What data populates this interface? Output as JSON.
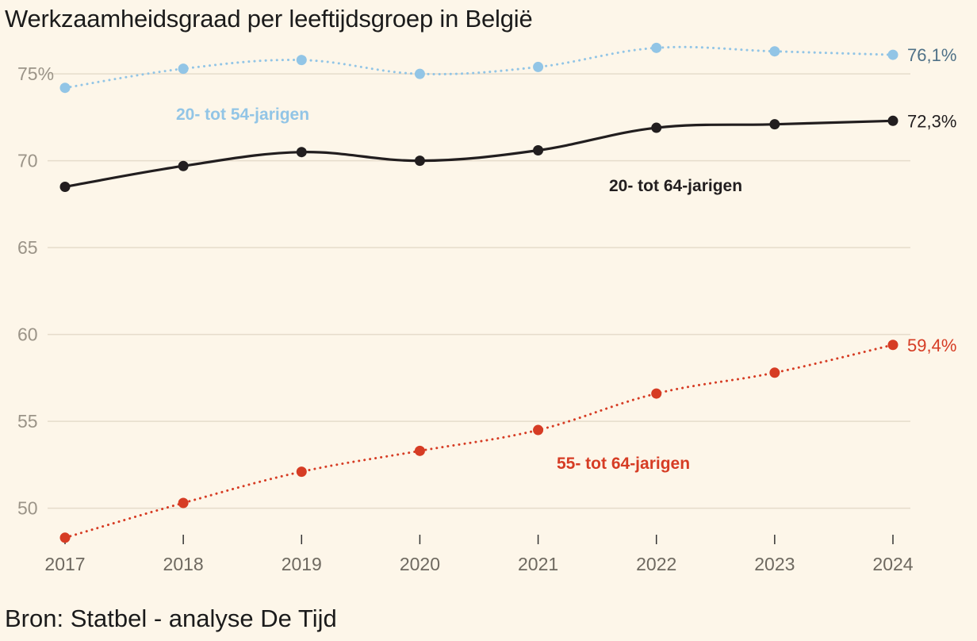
{
  "header": {
    "title": "Werkzaamheidsgraad per leeftijdsgroep in België"
  },
  "footer": {
    "source": "Bron: Statbel - analyse De Tijd"
  },
  "chart_data": {
    "type": "line",
    "x": [
      2017,
      2018,
      2019,
      2020,
      2021,
      2022,
      2023,
      2024
    ],
    "x_tick_labels": [
      "2017",
      "2018",
      "2019",
      "2020",
      "2021",
      "2022",
      "2023",
      "2024"
    ],
    "y_ticks": [
      50,
      55,
      60,
      65,
      70,
      75
    ],
    "y_tick_labels": [
      "50",
      "55",
      "60",
      "65",
      "70",
      "75%"
    ],
    "ylim": [
      48.2,
      77.2
    ],
    "grid": true,
    "series": [
      {
        "name": "20- tot 54-jarigen",
        "values": [
          74.2,
          75.3,
          75.8,
          75.0,
          75.4,
          76.5,
          76.3,
          76.1
        ],
        "end_label": "76,1%",
        "color": "#92c5e6",
        "label_color": "#92c5e6",
        "end_label_color": "#4f7187",
        "line_style": "dotted"
      },
      {
        "name": "20- tot 64-jarigen",
        "values": [
          68.5,
          69.7,
          70.5,
          70.0,
          70.6,
          71.9,
          72.1,
          72.3
        ],
        "end_label": "72,3%",
        "color": "#221e1f",
        "label_color": "#221e1f",
        "end_label_color": "#221e1f",
        "line_style": "solid"
      },
      {
        "name": "55- tot 64-jarigen",
        "values": [
          48.3,
          50.3,
          52.1,
          53.3,
          54.5,
          56.6,
          57.8,
          59.4
        ],
        "end_label": "59,4%",
        "color": "#d63c24",
        "label_color": "#d63c24",
        "end_label_color": "#d63c24",
        "line_style": "dotted"
      }
    ]
  }
}
